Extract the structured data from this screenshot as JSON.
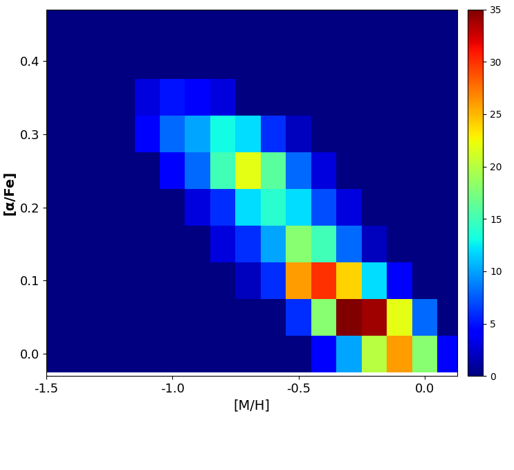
{
  "chart_data": {
    "type": "heatmap",
    "x_label": "[M/H]",
    "y_label": "[α/Fe]",
    "x_edges": [
      -1.55,
      -1.45,
      -1.35,
      -1.25,
      -1.15,
      -1.05,
      -0.95,
      -0.85,
      -0.75,
      -0.65,
      -0.55,
      -0.45,
      -0.35,
      -0.25,
      -0.15,
      -0.05,
      0.05,
      0.15
    ],
    "y_edges": [
      -0.025,
      0.025,
      0.075,
      0.125,
      0.175,
      0.225,
      0.275,
      0.325,
      0.375,
      0.425,
      0.475
    ],
    "cells": [
      [
        0,
        0,
        0,
        0,
        0,
        0,
        0,
        0,
        0,
        0,
        0,
        4,
        10,
        20,
        26,
        18,
        4
      ],
      [
        0,
        0,
        0,
        0,
        0,
        0,
        0,
        0,
        0,
        0,
        6,
        18,
        35,
        34,
        22,
        8,
        0
      ],
      [
        0,
        0,
        0,
        0,
        0,
        0,
        0,
        0,
        2,
        6,
        26,
        30,
        24,
        12,
        4,
        0,
        0
      ],
      [
        0,
        0,
        0,
        0,
        0,
        0,
        0,
        3,
        6,
        10,
        18,
        15,
        8,
        2,
        0,
        0,
        0
      ],
      [
        0,
        0,
        0,
        0,
        0,
        0,
        3,
        6,
        12,
        14,
        12,
        7,
        3,
        0,
        0,
        0,
        0
      ],
      [
        0,
        0,
        0,
        0,
        0,
        4,
        8,
        15,
        22,
        16,
        8,
        3,
        0,
        0,
        0,
        0,
        0
      ],
      [
        0,
        0,
        0,
        0,
        4,
        8,
        10,
        13,
        12,
        6,
        2,
        0,
        0,
        0,
        0,
        0,
        0
      ],
      [
        0,
        0,
        0,
        0,
        3,
        5,
        4,
        3,
        0,
        0,
        0,
        0,
        0,
        0,
        0,
        0,
        0
      ],
      [
        0,
        0,
        0,
        0,
        0,
        0,
        0,
        0,
        0,
        0,
        0,
        0,
        0,
        0,
        0,
        0,
        0
      ],
      [
        0,
        0,
        0,
        0,
        0,
        0,
        0,
        0,
        0,
        0,
        0,
        0,
        0,
        0,
        0,
        0,
        0
      ]
    ],
    "colorbar_range": [
      0,
      35
    ],
    "colorbar_ticks": [
      0,
      5,
      10,
      15,
      20,
      25,
      30,
      35
    ],
    "xlim": [
      -1.5,
      0.13
    ],
    "ylim": [
      -0.03,
      0.47
    ],
    "xticks": [
      {
        "value": -1.5,
        "label": "-1.5"
      },
      {
        "value": -1.0,
        "label": "-1.0"
      },
      {
        "value": -0.5,
        "label": "-0.5"
      },
      {
        "value": 0.0,
        "label": "0.0"
      }
    ],
    "yticks": [
      {
        "value": 0.0,
        "label": "0.0"
      },
      0.1,
      0.2,
      0.3,
      0.4
    ]
  }
}
